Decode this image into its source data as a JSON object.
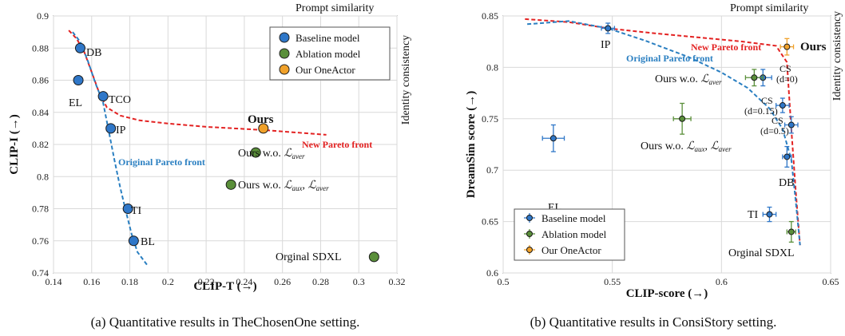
{
  "captions": {
    "left": "(a) Quantitative results in TheChosenOne setting.",
    "right": "(b) Quantitative results in ConsiStory setting."
  },
  "corner_labels": {
    "top": "Prompt similarity",
    "side": "Identity consistency"
  },
  "colors": {
    "baseline": "#2f77c8",
    "ablation": "#5a8f3a",
    "ours": "#f0a12a",
    "new_front": "#e32222",
    "orig_front": "#2a7fc1"
  },
  "chart_data": [
    {
      "type": "scatter",
      "xlabel": "CLIP-T (→)",
      "ylabel": "CLIP-I (→)",
      "xlim": [
        0.14,
        0.32
      ],
      "ylim": [
        0.74,
        0.9
      ],
      "xticks": [
        0.14,
        0.16,
        0.18,
        0.2,
        0.22,
        0.24,
        0.26,
        0.28,
        0.3,
        0.32
      ],
      "yticks": [
        0.74,
        0.76,
        0.78,
        0.8,
        0.82,
        0.84,
        0.86,
        0.88,
        0.9
      ],
      "grid": true,
      "legend": {
        "position": "top-right",
        "entries": [
          "Baseline model",
          "Ablation model",
          "Our OneActor"
        ]
      },
      "series": [
        {
          "name": "Baseline model",
          "points": [
            {
              "label": "DB",
              "x": 0.154,
              "y": 0.88
            },
            {
              "label": "EL",
              "x": 0.153,
              "y": 0.86
            },
            {
              "label": "TCO",
              "x": 0.166,
              "y": 0.85
            },
            {
              "label": "IP",
              "x": 0.17,
              "y": 0.83
            },
            {
              "label": "TI",
              "x": 0.179,
              "y": 0.78
            },
            {
              "label": "BL",
              "x": 0.182,
              "y": 0.76
            }
          ]
        },
        {
          "name": "Ablation model",
          "points": [
            {
              "label": "Ours w.o. ℒaver",
              "x": 0.246,
              "y": 0.815
            },
            {
              "label": "Ours w.o. ℒaux, ℒaver",
              "x": 0.233,
              "y": 0.795
            },
            {
              "label": "Orginal SDXL",
              "x": 0.308,
              "y": 0.75
            }
          ]
        },
        {
          "name": "Our OneActor",
          "points": [
            {
              "label": "Ours",
              "x": 0.25,
              "y": 0.83
            }
          ]
        }
      ],
      "curves": [
        {
          "name": "New Pareto front",
          "x": [
            0.148,
            0.152,
            0.156,
            0.16,
            0.164,
            0.168,
            0.175,
            0.185,
            0.2,
            0.22,
            0.25,
            0.283
          ],
          "y": [
            0.891,
            0.886,
            0.878,
            0.865,
            0.852,
            0.843,
            0.838,
            0.835,
            0.833,
            0.831,
            0.829,
            0.826
          ]
        },
        {
          "name": "Original Pareto front",
          "x": [
            0.15,
            0.154,
            0.158,
            0.162,
            0.166,
            0.169,
            0.172,
            0.175,
            0.178,
            0.181,
            0.184,
            0.189
          ],
          "y": [
            0.89,
            0.884,
            0.872,
            0.858,
            0.846,
            0.828,
            0.81,
            0.793,
            0.778,
            0.764,
            0.753,
            0.745
          ]
        }
      ]
    },
    {
      "type": "scatter",
      "xlabel": "CLIP-score (→)",
      "ylabel": "DreamSim score (→)",
      "xlim": [
        0.5,
        0.65
      ],
      "ylim": [
        0.6,
        0.85
      ],
      "xticks": [
        0.5,
        0.55,
        0.6,
        0.65
      ],
      "yticks": [
        0.6,
        0.65,
        0.7,
        0.75,
        0.8,
        0.85
      ],
      "grid": true,
      "legend": {
        "position": "bottom-left",
        "entries": [
          "Baseline model",
          "Ablation model",
          "Our OneActor"
        ]
      },
      "series": [
        {
          "name": "Baseline model",
          "points": [
            {
              "label": "IP",
              "x": 0.548,
              "y": 0.838,
              "xerr": 0.003,
              "yerr": 0.005
            },
            {
              "label": "EL",
              "x": 0.523,
              "y": 0.731,
              "xerr": 0.005,
              "yerr": 0.013
            },
            {
              "label": "CS (d=0)",
              "x": 0.619,
              "y": 0.79,
              "xerr": 0.004,
              "yerr": 0.008
            },
            {
              "label": "CS (d=0.15)",
              "x": 0.628,
              "y": 0.763,
              "xerr": 0.003,
              "yerr": 0.007
            },
            {
              "label": "CS (d=0.5)",
              "x": 0.632,
              "y": 0.744,
              "xerr": 0.003,
              "yerr": 0.008
            },
            {
              "label": "DB",
              "x": 0.63,
              "y": 0.713,
              "xerr": 0.002,
              "yerr": 0.01
            },
            {
              "label": "TI",
              "x": 0.622,
              "y": 0.657,
              "xerr": 0.003,
              "yerr": 0.007
            }
          ]
        },
        {
          "name": "Ablation model",
          "points": [
            {
              "label": "Ours w.o. ℒaver",
              "x": 0.615,
              "y": 0.79,
              "xerr": 0.004,
              "yerr": 0.008
            },
            {
              "label": "Ours w.o. ℒaux, ℒaver",
              "x": 0.582,
              "y": 0.75,
              "xerr": 0.004,
              "yerr": 0.015
            },
            {
              "label": "Orginal SDXL",
              "x": 0.632,
              "y": 0.64,
              "xerr": 0.002,
              "yerr": 0.01
            }
          ]
        },
        {
          "name": "Our OneActor",
          "points": [
            {
              "label": "Ours",
              "x": 0.63,
              "y": 0.82,
              "xerr": 0.003,
              "yerr": 0.008
            }
          ]
        }
      ],
      "curves": [
        {
          "name": "New Pareto front",
          "x": [
            0.51,
            0.53,
            0.548,
            0.57,
            0.59,
            0.61,
            0.625,
            0.63,
            0.632,
            0.634,
            0.636
          ],
          "y": [
            0.847,
            0.844,
            0.838,
            0.833,
            0.829,
            0.825,
            0.821,
            0.805,
            0.74,
            0.68,
            0.627
          ]
        },
        {
          "name": "Original Pareto front",
          "x": [
            0.511,
            0.53,
            0.548,
            0.565,
            0.585,
            0.6,
            0.612,
            0.622,
            0.628,
            0.632,
            0.634,
            0.636
          ],
          "y": [
            0.842,
            0.845,
            0.838,
            0.826,
            0.81,
            0.795,
            0.78,
            0.76,
            0.74,
            0.71,
            0.67,
            0.627
          ]
        }
      ]
    }
  ],
  "annotations": {
    "left": {
      "new_front": "New Pareto front",
      "orig_front": "Original Pareto front",
      "ours": "Ours",
      "db": "DB",
      "el": "EL",
      "tco": "TCO",
      "ip": "IP",
      "ti": "TI",
      "bl": "BL",
      "ours_wo_aver_prefix": "Ours w.o. ",
      "ours_wo_both_prefix": "Ours w.o. ",
      "orig_sdxl": "Orginal SDXL",
      "L": "ℒ",
      "aver": "aver",
      "aux": "aux",
      "comma": ", "
    },
    "right": {
      "new_front": "New Pareto front",
      "orig_front": "Original Pareto front",
      "ours": "Ours",
      "ip": "IP",
      "el": "EL",
      "db": "DB",
      "ti": "TI",
      "cs": "CS",
      "cs_d0": "(d=0)",
      "cs_d015": "(d=0.15)",
      "cs_d05": "(d=0.5)",
      "ours_wo_aver_prefix": "Ours w.o. ",
      "ours_wo_both_prefix": "Ours w.o. ",
      "orig_sdxl": "Orginal SDXL",
      "L": "ℒ",
      "aver": "aver",
      "aux": "aux",
      "comma": ", "
    }
  }
}
